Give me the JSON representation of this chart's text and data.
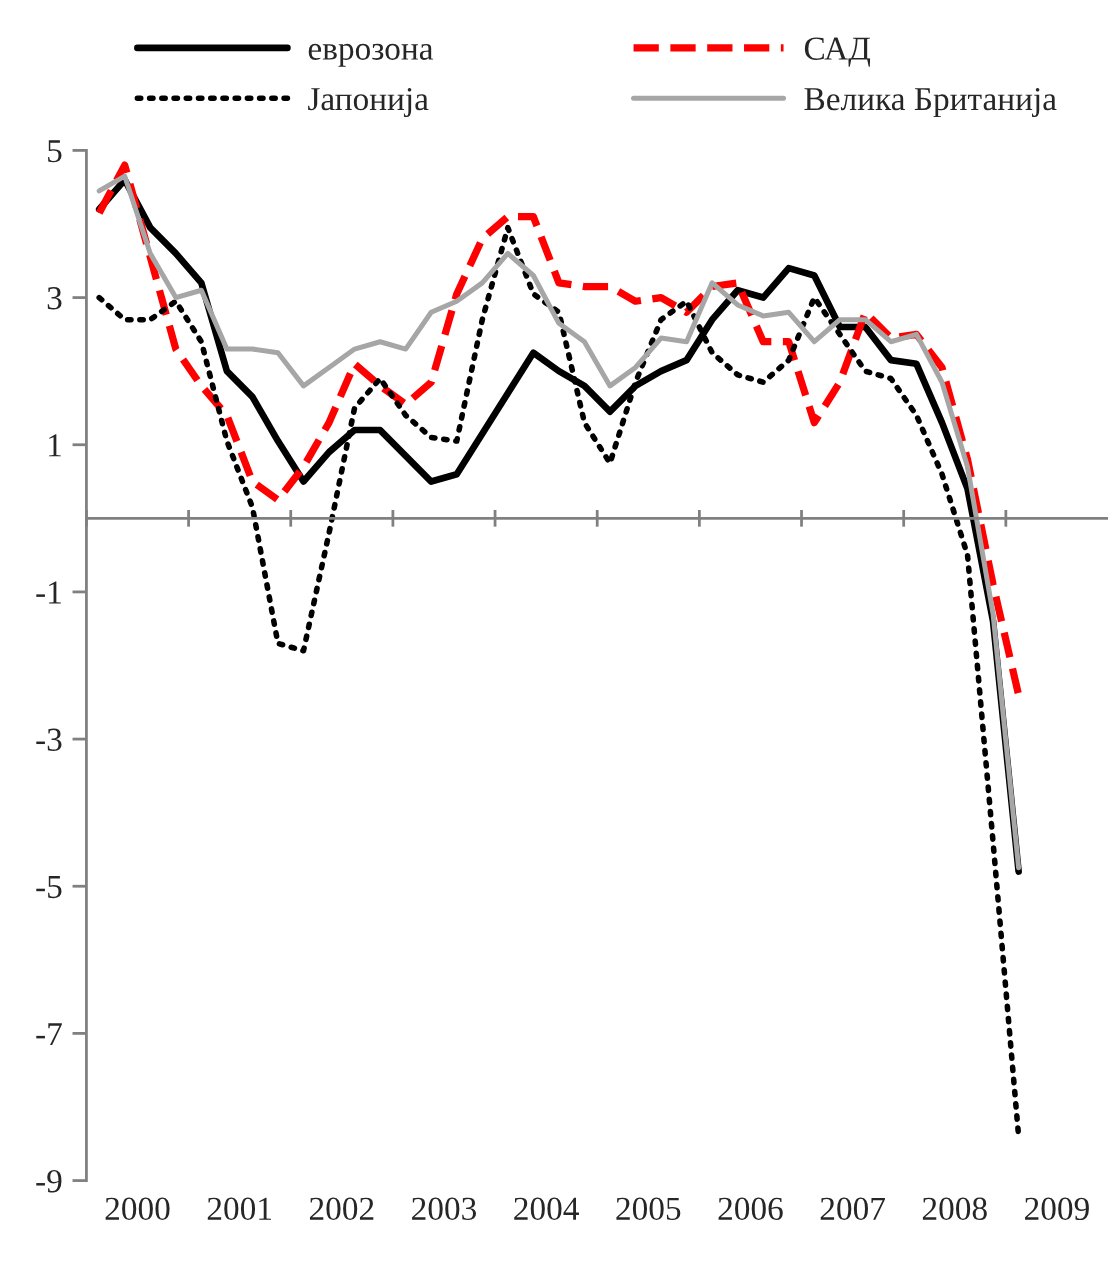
{
  "chart_data": {
    "type": "line",
    "x": [
      2000.125,
      2000.375,
      2000.625,
      2000.875,
      2001.125,
      2001.375,
      2001.625,
      2001.875,
      2002.125,
      2002.375,
      2002.625,
      2002.875,
      2003.125,
      2003.375,
      2003.625,
      2003.875,
      2004.125,
      2004.375,
      2004.625,
      2004.875,
      2005.125,
      2005.375,
      2005.625,
      2005.875,
      2006.125,
      2006.375,
      2006.625,
      2006.875,
      2007.125,
      2007.375,
      2007.625,
      2007.875,
      2008.125,
      2008.375,
      2008.625,
      2008.875,
      2009.125
    ],
    "series": [
      {
        "name": "еврозона",
        "color": "#000000",
        "line_style": "solid",
        "values": [
          4.2,
          4.6,
          3.95,
          3.6,
          3.2,
          2.0,
          1.65,
          1.05,
          0.5,
          0.9,
          1.2,
          1.2,
          0.85,
          0.5,
          0.6,
          1.15,
          1.7,
          2.25,
          2.0,
          1.8,
          1.45,
          1.8,
          2.0,
          2.15,
          2.7,
          3.1,
          3.0,
          3.4,
          3.3,
          2.6,
          2.6,
          2.15,
          2.1,
          1.3,
          0.4,
          -1.4,
          -4.8
        ]
      },
      {
        "name": "САД",
        "color": "#ff0000",
        "line_style": "dashed",
        "values": [
          4.15,
          4.8,
          3.55,
          2.3,
          1.8,
          1.4,
          0.5,
          0.25,
          0.7,
          1.3,
          2.1,
          1.8,
          1.55,
          1.85,
          3.05,
          3.8,
          4.1,
          4.1,
          3.2,
          3.15,
          3.15,
          2.95,
          3.0,
          2.8,
          3.15,
          3.2,
          2.4,
          2.4,
          1.3,
          1.85,
          2.8,
          2.45,
          2.5,
          2.05,
          0.8,
          -0.9,
          -2.4
        ]
      },
      {
        "name": "Јапонија",
        "color": "#000000",
        "line_style": "dotted",
        "values": [
          3.0,
          2.7,
          2.7,
          2.95,
          2.4,
          1.05,
          0.15,
          -1.7,
          -1.8,
          -0.2,
          1.5,
          1.9,
          1.4,
          1.1,
          1.05,
          2.7,
          3.95,
          3.05,
          2.8,
          1.3,
          0.75,
          1.85,
          2.7,
          2.95,
          2.25,
          1.95,
          1.85,
          2.15,
          3.0,
          2.5,
          2.0,
          1.9,
          1.4,
          0.6,
          -0.5,
          -4.4,
          -8.4
        ]
      },
      {
        "name": "Велика Британија",
        "color": "#a6a6a6",
        "line_style": "solid",
        "values": [
          4.45,
          4.65,
          3.6,
          3.0,
          3.1,
          2.3,
          2.3,
          2.25,
          1.8,
          2.05,
          2.3,
          2.4,
          2.3,
          2.8,
          2.95,
          3.2,
          3.6,
          3.3,
          2.65,
          2.4,
          1.8,
          2.05,
          2.45,
          2.4,
          3.2,
          2.9,
          2.75,
          2.8,
          2.4,
          2.7,
          2.7,
          2.4,
          2.5,
          1.85,
          0.7,
          -1.3,
          -4.75
        ]
      }
    ],
    "xlim": [
      2000,
      2010
    ],
    "xticks": [
      {
        "value": 2000,
        "label": null
      },
      {
        "value": 2001,
        "label": null
      },
      {
        "value": 2002,
        "label": null
      },
      {
        "value": 2003,
        "label": null
      },
      {
        "value": 2004,
        "label": null
      },
      {
        "value": 2005,
        "label": null
      },
      {
        "value": 2006,
        "label": null
      },
      {
        "value": 2007,
        "label": null
      },
      {
        "value": 2008,
        "label": null
      },
      {
        "value": 2009,
        "label": null
      },
      {
        "value": 2000.5,
        "label": "2000"
      },
      {
        "value": 2001.5,
        "label": "2001"
      },
      {
        "value": 2002.5,
        "label": "2002"
      },
      {
        "value": 2003.5,
        "label": "2003"
      },
      {
        "value": 2004.5,
        "label": "2004"
      },
      {
        "value": 2005.5,
        "label": "2005"
      },
      {
        "value": 2006.5,
        "label": "2006"
      },
      {
        "value": 2007.5,
        "label": "2007"
      },
      {
        "value": 2008.5,
        "label": "2008"
      },
      {
        "value": 2009.5,
        "label": "2009"
      }
    ],
    "ylim": [
      -9,
      5
    ],
    "yticks": [
      5,
      3,
      1,
      -1,
      -3,
      -5,
      -7,
      -9
    ],
    "grid": false,
    "legend": "top",
    "marker": "none"
  }
}
